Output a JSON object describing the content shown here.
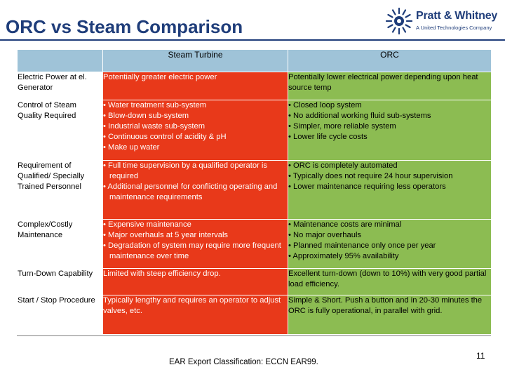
{
  "header": {
    "title": "ORC vs Steam Comparison",
    "logo_name": "Pratt & Whitney",
    "logo_sub": "A United Technologies Company",
    "brand_color": "#1f3d7a"
  },
  "table": {
    "col_headers": [
      "",
      "Steam Turbine",
      "ORC"
    ],
    "rows": [
      {
        "label": "Electric Power at el. Generator",
        "steam": [
          "Potentially greater electric power"
        ],
        "orc": [
          "Potentially lower electrical power depending upon heat source temp"
        ],
        "bulleted": false
      },
      {
        "label": "Control of Steam Quality Required",
        "steam": [
          "• Water treatment sub-system",
          "• Blow-down sub-system",
          "• Industrial waste sub-system",
          "• Continuous control of acidity & pH",
          "• Make up water"
        ],
        "orc": [
          "• Closed loop system",
          "• No additional working fluid sub-systems",
          "• Simpler, more reliable system",
          "• Lower life cycle costs"
        ],
        "bulleted": true
      },
      {
        "label": "Requirement of Qualified/ Specially Trained Personnel",
        "steam": [
          "• Full time supervision by a qualified operator is required",
          "• Additional personnel for conflicting operating and maintenance requirements"
        ],
        "orc": [
          "• ORC is completely automated",
          "• Typically does not require 24 hour supervision",
          "• Lower maintenance requiring less operators"
        ],
        "bulleted": true
      },
      {
        "label": "Complex/Costly Maintenance",
        "steam": [
          "• Expensive maintenance",
          "• Major overhauls at 5 year intervals",
          "• Degradation of system may require more frequent maintenance over time"
        ],
        "orc": [
          "• Maintenance costs are minimal",
          "• No major overhauls",
          "• Planned maintenance only once per year",
          "• Approximately 95% availability"
        ],
        "bulleted": true
      },
      {
        "label": "Turn-Down Capability",
        "steam": [
          "Limited with steep efficiency drop."
        ],
        "orc": [
          "Excellent turn-down (down to 10%) with very good partial load efficiency."
        ],
        "bulleted": false
      },
      {
        "label": "Start / Stop Procedure",
        "steam": [
          "Typically lengthy and requires an operator to adjust valves, etc."
        ],
        "orc": [
          "Simple & Short.  Push a button and in 20-30 minutes the ORC is fully operational, in parallel with grid."
        ],
        "bulleted": false
      }
    ],
    "colors": {
      "header": "#9fc3d8",
      "steam": "#e8391a",
      "orc": "#8cbc52"
    }
  },
  "footer": {
    "export_classification": "EAR Export Classification: ECCN EAR99.",
    "page_number": "11"
  }
}
